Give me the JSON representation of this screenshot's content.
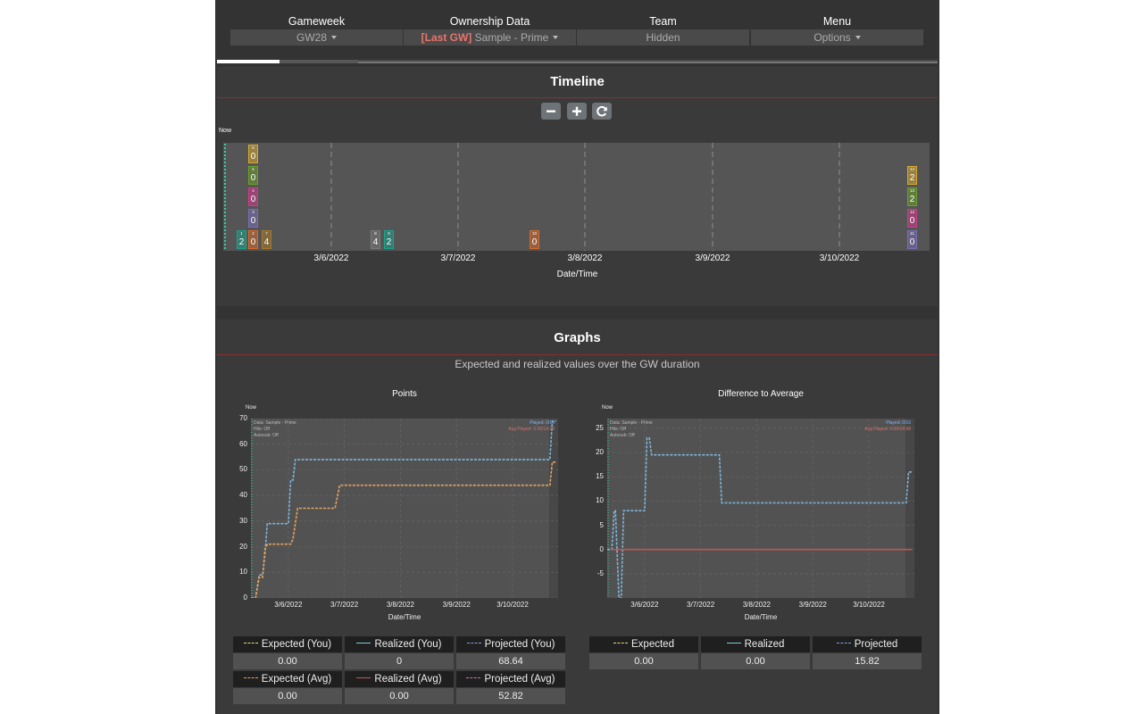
{
  "header": {
    "gameweek": {
      "title": "Gameweek",
      "value": "GW28"
    },
    "ownership": {
      "title": "Ownership Data",
      "tag": "[Last GW]",
      "value": "Sample - Prime"
    },
    "team": {
      "title": "Team",
      "value": "Hidden"
    },
    "menu": {
      "title": "Menu",
      "value": "Options"
    }
  },
  "timeline": {
    "title": "Timeline",
    "now_label": "Now",
    "controls": {
      "zoom_out": "zoom-out-icon",
      "zoom_in": "zoom-in-icon",
      "reset": "refresh-icon"
    },
    "date_ticks": [
      "3/6/2022",
      "3/7/2022",
      "3/8/2022",
      "3/9/2022",
      "3/10/2022"
    ],
    "xlabel": "Date/Time",
    "badges": [
      {
        "num": "1",
        "val": "2",
        "color": "#1aa48a"
      },
      {
        "num": "2",
        "val": "0",
        "color": "#d66a2b"
      },
      {
        "num": "3",
        "val": "0",
        "color": "#7a6fb6"
      },
      {
        "num": "4",
        "val": "0",
        "color": "#d03a8c"
      },
      {
        "num": "5",
        "val": "0",
        "color": "#6aa02a"
      },
      {
        "num": "6",
        "val": "0",
        "color": "#d7a92e"
      },
      {
        "num": "7",
        "val": "4",
        "color": "#a8792a"
      },
      {
        "num": "8",
        "val": "4",
        "color": "#7a7a7a"
      },
      {
        "num": "9",
        "val": "2",
        "color": "#1aa48a"
      },
      {
        "num": "10",
        "val": "0",
        "color": "#d66a2b"
      },
      {
        "num": "11",
        "val": "0",
        "color": "#7a6fb6"
      },
      {
        "num": "12",
        "val": "0",
        "color": "#d03a8c"
      },
      {
        "num": "13",
        "val": "2",
        "color": "#6aa02a"
      },
      {
        "num": "14",
        "val": "2",
        "color": "#d7a92e"
      }
    ]
  },
  "graphs": {
    "title": "Graphs",
    "subtitle": "Expected and realized values over the GW duration",
    "now_label": "Now",
    "annotations": {
      "data": "Data: Sample - Prime",
      "hits": "Hits: Off",
      "autosub": "Autosub: Off",
      "played": "Played: 0/16",
      "avg_played": "Avg Played: 0.00/14.58"
    }
  },
  "chart_data": [
    {
      "type": "line",
      "title": "Points",
      "xlabel": "Date/Time",
      "x_ticks": [
        "3/6/2022",
        "3/7/2022",
        "3/8/2022",
        "3/9/2022",
        "3/10/2022"
      ],
      "ylim": [
        0,
        70
      ],
      "y_ticks": [
        0,
        10,
        20,
        30,
        40,
        50,
        60,
        70
      ],
      "series": [
        {
          "name": "Projected (You)",
          "color": "#7eb6d9",
          "values": [
            [
              "2022-03-05T08:00",
              0
            ],
            [
              "2022-03-05T10:00",
              0
            ],
            [
              "2022-03-05T11:30",
              9
            ],
            [
              "2022-03-05T13:00",
              9
            ],
            [
              "2022-03-05T14:00",
              17
            ],
            [
              "2022-03-05T15:00",
              29
            ],
            [
              "2022-03-05T23:00",
              29
            ],
            [
              "2022-03-06T00:00",
              29
            ],
            [
              "2022-03-06T01:00",
              46
            ],
            [
              "2022-03-06T02:00",
              46
            ],
            [
              "2022-03-06T03:00",
              54
            ],
            [
              "2022-03-10T16:00",
              54
            ],
            [
              "2022-03-10T17:00",
              69
            ],
            [
              "2022-03-10T18:30",
              69
            ]
          ]
        },
        {
          "name": "Projected (Avg)",
          "color": "#e8a35d",
          "values": [
            [
              "2022-03-05T08:00",
              0
            ],
            [
              "2022-03-05T10:00",
              0
            ],
            [
              "2022-03-05T11:30",
              8
            ],
            [
              "2022-03-05T13:00",
              8
            ],
            [
              "2022-03-05T14:00",
              19
            ],
            [
              "2022-03-05T15:00",
              21
            ],
            [
              "2022-03-06T01:00",
              21
            ],
            [
              "2022-03-06T02:00",
              23
            ],
            [
              "2022-03-06T04:00",
              35
            ],
            [
              "2022-03-06T20:00",
              35
            ],
            [
              "2022-03-06T22:00",
              44
            ],
            [
              "2022-03-10T16:00",
              44
            ],
            [
              "2022-03-10T17:00",
              53
            ],
            [
              "2022-03-10T18:30",
              53
            ]
          ]
        }
      ]
    },
    {
      "type": "line",
      "title": "Difference to Average",
      "xlabel": "Date/Time",
      "x_ticks": [
        "3/6/2022",
        "3/7/2022",
        "3/8/2022",
        "3/9/2022",
        "3/10/2022"
      ],
      "ylim": [
        -10,
        27
      ],
      "y_ticks": [
        -5,
        0,
        5,
        10,
        15,
        20,
        25
      ],
      "series": [
        {
          "name": "Projected",
          "color": "#7eb6d9",
          "values": [
            [
              "2022-03-05T08:00",
              0
            ],
            [
              "2022-03-05T10:00",
              0
            ],
            [
              "2022-03-05T11:00",
              8
            ],
            [
              "2022-03-05T11:30",
              8
            ],
            [
              "2022-03-05T13:00",
              -10
            ],
            [
              "2022-03-05T14:00",
              -10
            ],
            [
              "2022-03-05T15:00",
              8
            ],
            [
              "2022-03-06T00:00",
              8
            ],
            [
              "2022-03-06T01:00",
              23
            ],
            [
              "2022-03-06T02:00",
              23
            ],
            [
              "2022-03-06T03:00",
              19.5
            ],
            [
              "2022-03-07T08:00",
              19.5
            ],
            [
              "2022-03-07T09:00",
              9.6
            ],
            [
              "2022-03-10T16:00",
              9.6
            ],
            [
              "2022-03-10T17:00",
              16
            ],
            [
              "2022-03-10T18:30",
              16
            ]
          ]
        },
        {
          "name": "Realized",
          "color": "#c0574e",
          "values": [
            [
              "2022-03-05T10:00",
              0
            ],
            [
              "2022-03-10T18:30",
              0
            ]
          ]
        }
      ]
    }
  ],
  "legend_points": [
    {
      "label": "Expected (You)",
      "value": "0.00",
      "style": "dash",
      "color": "#e9d97a"
    },
    {
      "label": "Realized (You)",
      "value": "0",
      "style": "solid",
      "color": "#7ec9d9"
    },
    {
      "label": "Projected (You)",
      "value": "68.64",
      "style": "dash",
      "color": "#7e9fd9"
    },
    {
      "label": "Expected (Avg)",
      "value": "0.00",
      "style": "dash",
      "color": "#e8a35d"
    },
    {
      "label": "Realized (Avg)",
      "value": "0.00",
      "style": "solid",
      "color": "#c0574e"
    },
    {
      "label": "Projected (Avg)",
      "value": "52.82",
      "style": "dash",
      "color": "#c07ab5"
    }
  ],
  "legend_diff": [
    {
      "label": "Expected",
      "value": "0.00",
      "style": "dash",
      "color": "#e9d97a"
    },
    {
      "label": "Realized",
      "value": "0.00",
      "style": "solid",
      "color": "#7ec9d9"
    },
    {
      "label": "Projected",
      "value": "15.82",
      "style": "dash",
      "color": "#7e9fd9"
    }
  ]
}
